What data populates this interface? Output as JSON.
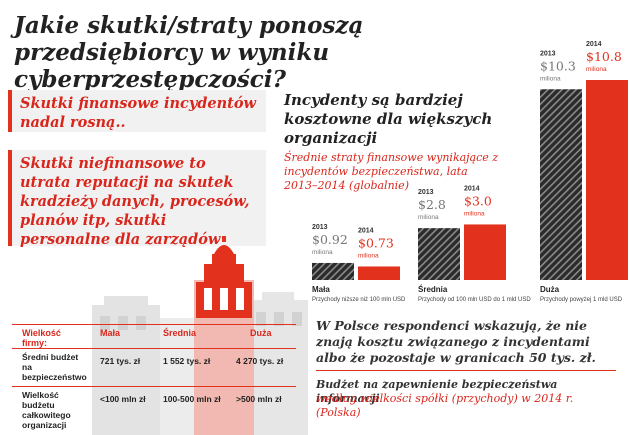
{
  "title": "Jakie skutki/straty ponoszą przedsiębiorcy w wyniku cyberprzestępczości?",
  "callouts": [
    "Skutki finansowe incydentów nadal rosną..",
    "Skutki niefinansowe to utrata reputacji na skutek kradzieży danych, procesów, planów itp, skutki personalne dla zarządów"
  ],
  "chart_heading": "Incydenty są bardziej kosztowne dla większych organizacji",
  "chart_subtitle": "Średnie straty finansowe wynikające z incydentów bezpieczeństwa, lata 2013–2014 (globalnie)",
  "chart_data": {
    "type": "bar",
    "categories": [
      "Mała",
      "Średnia",
      "Duża"
    ],
    "category_notes": [
      "Przychody niższe niż 100 mln USD",
      "Przychody od 100 mln USD do 1 mld USD",
      "Przychody powyżej 1 mld USD"
    ],
    "series": [
      {
        "name": "2013",
        "values": [
          0.92,
          2.8,
          10.3
        ],
        "labels": [
          "$0.92",
          "$2.8",
          "$10.3"
        ]
      },
      {
        "name": "2014",
        "values": [
          0.73,
          3.0,
          10.8
        ],
        "labels": [
          "$0.73",
          "$3.0",
          "$10.8"
        ]
      }
    ],
    "unit_label": "miliona",
    "colors": {
      "2013": "#2b2b2b",
      "2014": "#e2311d"
    }
  },
  "poland_note": "W Polsce respondenci wskazują, że nie znają kosztu związanego z incydentami albo że pozostaje w granicach 50 tys. zł.",
  "budget_heading": "Budżet na zapewnienie bezpieczeństwa informacji",
  "budget_subtitle": "według wielkości spółki (przychody) w 2014 r. (Polska)",
  "table": {
    "header_label": "Wielkość firmy:",
    "columns": [
      "Mała",
      "Średnia",
      "Duża"
    ],
    "rows": [
      {
        "label": "Średni budżet na bezpieczeństwo",
        "values": [
          "721 tys. zł",
          "1 552 tys. zł",
          "4 270 tys. zł"
        ]
      },
      {
        "label": "Wielkość budżetu całkowitego organizacji",
        "values": [
          "<100 mln zł",
          "100-500 mln zł",
          ">500 mln zł"
        ]
      }
    ]
  }
}
